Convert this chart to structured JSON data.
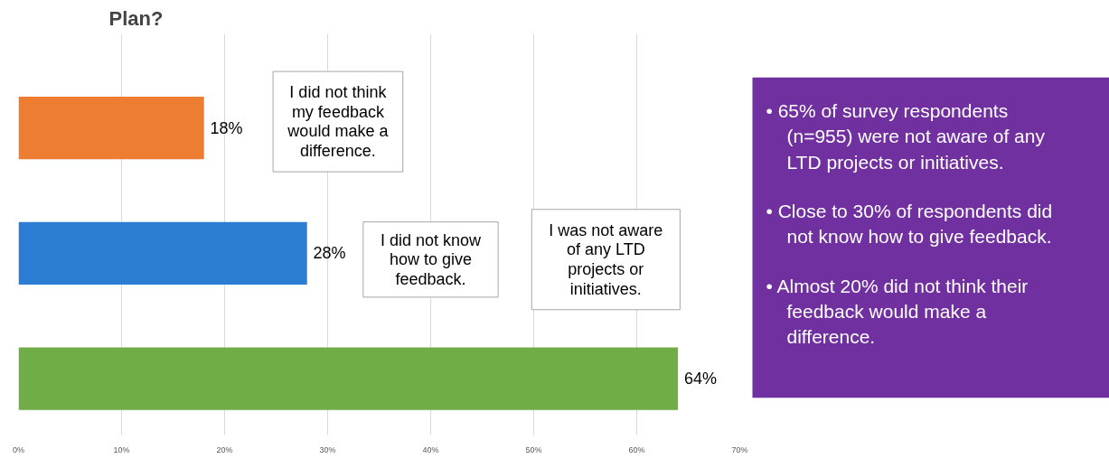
{
  "chart_data": {
    "type": "bar",
    "orientation": "horizontal",
    "title": "Plan?",
    "categories": [
      null,
      null,
      null
    ],
    "values": [
      18,
      28,
      64
    ],
    "colors": [
      "#ed7d31",
      "#2b7cd3",
      "#70ad47"
    ],
    "value_labels": [
      "18%",
      "28%",
      "64%"
    ],
    "xlim": [
      0,
      70
    ],
    "xticks": [
      {
        "value": 0,
        "label": "0%"
      },
      {
        "value": 10,
        "label": "10%"
      },
      {
        "value": 20,
        "label": "20%"
      },
      {
        "value": 30,
        "label": "30%"
      },
      {
        "value": 40,
        "label": "40%"
      },
      {
        "value": 50,
        "label": "50%"
      },
      {
        "value": 60,
        "label": "60%"
      },
      {
        "value": 70,
        "label": "70%"
      }
    ],
    "grid": "x",
    "annotations": [
      "I did not think\nmy feedback\nwould make a\ndifference.",
      "I did not know\nhow to give\nfeedback.",
      "I was not aware\nof any LTD\nprojects or\ninitiatives.",
      "• 65% of survey respondents\n(n=955) were not aware of any\nLTD projects or initiatives.",
      "• Close to 30% of respondents did\nnot know how to give feedback.",
      "• Almost 20% did not think their\nfeedback would make a\ndifference."
    ]
  }
}
